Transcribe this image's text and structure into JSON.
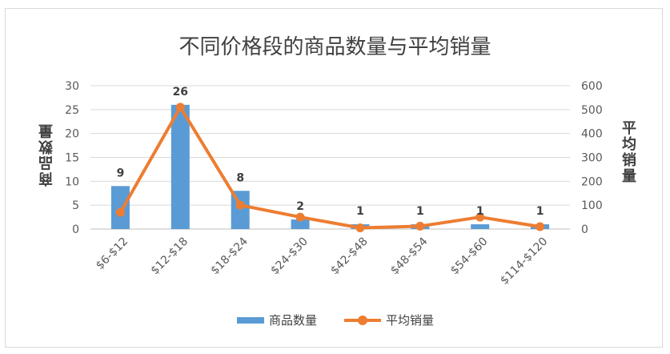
{
  "chart_data": {
    "type": "bar",
    "title": "不同价格段的商品数量与平均销量",
    "categories": [
      "$6-$12",
      "$12-$18",
      "$18-$24",
      "$24-$30",
      "$42-$48",
      "$48-$54",
      "$54-$60",
      "$114-$120"
    ],
    "series": [
      {
        "name": "商品数量",
        "type": "bar",
        "axis": "left",
        "color": "#5b9bd5",
        "values": [
          9,
          26,
          8,
          2,
          1,
          1,
          1,
          1
        ]
      },
      {
        "name": "平均销量",
        "type": "line",
        "axis": "right",
        "color": "#ed7d31",
        "values": [
          70,
          510,
          100,
          50,
          5,
          12,
          50,
          10
        ]
      }
    ],
    "ylabel": "商品数量",
    "y2label": "平均销量",
    "ylim": [
      0,
      30
    ],
    "y2lim": [
      0,
      600
    ],
    "yticks": [
      "0",
      "5",
      "10",
      "15",
      "20",
      "25",
      "30"
    ],
    "y2ticks": [
      "0",
      "100",
      "200",
      "300",
      "400",
      "500",
      "600"
    ],
    "data_labels": [
      "9",
      "26",
      "8",
      "2",
      "1",
      "1",
      "1",
      "1"
    ],
    "grid": true,
    "legend_position": "bottom"
  }
}
